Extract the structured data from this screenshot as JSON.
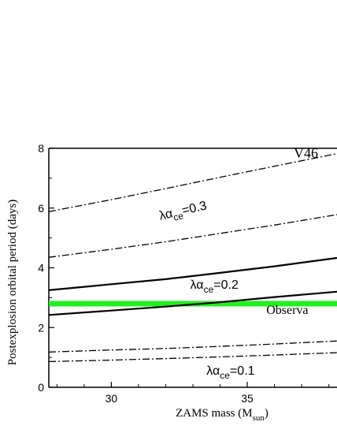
{
  "chart_data": {
    "type": "line",
    "title": "V46",
    "xlabel": {
      "main": "ZAMS mass (M",
      "sub": "sun",
      "close": ")"
    },
    "ylabel": "Postexplosion orbital period (days)",
    "xlim": [
      27.7,
      38.3
    ],
    "ylim": [
      0,
      8
    ],
    "xticks": [
      30,
      35
    ],
    "yticks": [
      0,
      2,
      4,
      6,
      8
    ],
    "grid": false,
    "series": [
      {
        "style": "dash-dot",
        "x": [
          27.7,
          30,
          32,
          34,
          36,
          38.3
        ],
        "y": [
          5.88,
          6.28,
          6.65,
          7.03,
          7.4,
          7.82
        ]
      },
      {
        "style": "dash-dot",
        "x": [
          27.7,
          30,
          32,
          34,
          36,
          38.3
        ],
        "y": [
          4.35,
          4.62,
          4.87,
          5.15,
          5.43,
          5.78
        ]
      },
      {
        "style": "solid",
        "x": [
          27.7,
          30,
          32,
          34,
          36,
          38.3
        ],
        "y": [
          3.25,
          3.45,
          3.62,
          3.83,
          4.05,
          4.33
        ]
      },
      {
        "style": "solid",
        "x": [
          27.7,
          30,
          32,
          34,
          36,
          38.3
        ],
        "y": [
          2.42,
          2.57,
          2.7,
          2.85,
          3.02,
          3.2
        ]
      },
      {
        "style": "dash-dot",
        "x": [
          27.7,
          30,
          32,
          34,
          36,
          38.3
        ],
        "y": [
          1.18,
          1.25,
          1.3,
          1.37,
          1.45,
          1.55
        ]
      },
      {
        "style": "dash-dot",
        "x": [
          27.7,
          30,
          32,
          34,
          36,
          38.3
        ],
        "y": [
          0.86,
          0.91,
          0.96,
          1.02,
          1.08,
          1.16
        ]
      }
    ],
    "observed_band": {
      "y": 2.8,
      "color": "#22ee22"
    },
    "annotations": [
      {
        "id": "lambda-03",
        "prefix": "λα",
        "sub": "ce",
        "suffix": "=0.3",
        "x": 31.8,
        "y": 5.6,
        "angle": -13
      },
      {
        "id": "lambda-02",
        "prefix": "λα",
        "sub": "ce",
        "suffix": "=0.2",
        "x": 32.9,
        "y": 3.3,
        "angle": 0
      },
      {
        "id": "lambda-01",
        "prefix": "λα",
        "sub": "ce",
        "suffix": "=0.1",
        "x": 33.5,
        "y": 0.42,
        "angle": 0
      },
      {
        "id": "observed",
        "text": "Observa",
        "x": 35.7,
        "y": 2.45,
        "angle": 0
      }
    ]
  }
}
